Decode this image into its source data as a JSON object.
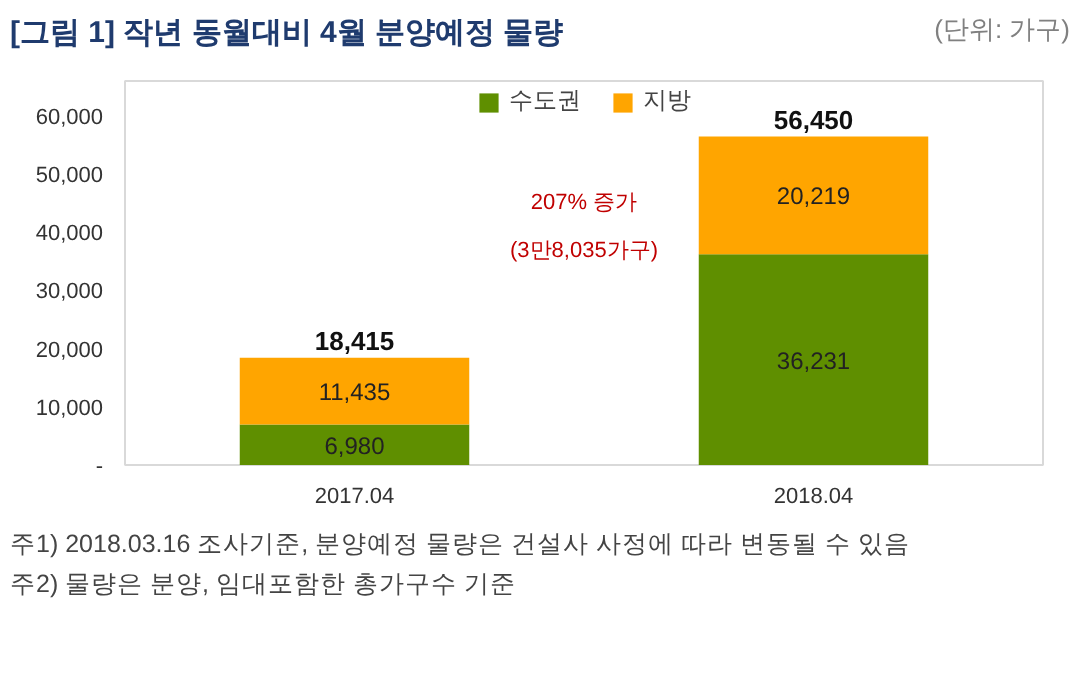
{
  "chart_data": {
    "type": "bar",
    "title": "[그림 1] 작년 동월대비 4월 분양예정 물량",
    "subtitle": "(단위: 가구)",
    "categories": [
      "2017.04",
      "2018.04"
    ],
    "stacked": true,
    "series": [
      {
        "name": "수도권",
        "color": "#5f8f00",
        "values": [
          6980,
          36231
        ],
        "value_labels": [
          "6,980",
          "36,231"
        ]
      },
      {
        "name": "지방",
        "color": "#ffa500",
        "values": [
          11435,
          20219
        ],
        "value_labels": [
          "11,435",
          "20,219"
        ]
      }
    ],
    "totals": [
      "18,415",
      "56,450"
    ],
    "ylim": [
      0,
      66000
    ],
    "yticks": [
      {
        "value": 0,
        "label": "-"
      },
      {
        "value": 10000,
        "label": "10,000"
      },
      {
        "value": 20000,
        "label": "20,000"
      },
      {
        "value": 30000,
        "label": "30,000"
      },
      {
        "value": 40000,
        "label": "40,000"
      },
      {
        "value": 50000,
        "label": "50,000"
      },
      {
        "value": 60000,
        "label": "60,000"
      }
    ],
    "grid": false,
    "legend": "top",
    "annotations": [
      "207% 증가\n(3만8,035가구)",
      "주1) 2018.03.16 조사기준, 분양예정 물량은 건설사 사정에 따라 변동될 수 있음",
      "주2) 물량은 분양, 임대포함한 총가구수 기준"
    ]
  }
}
